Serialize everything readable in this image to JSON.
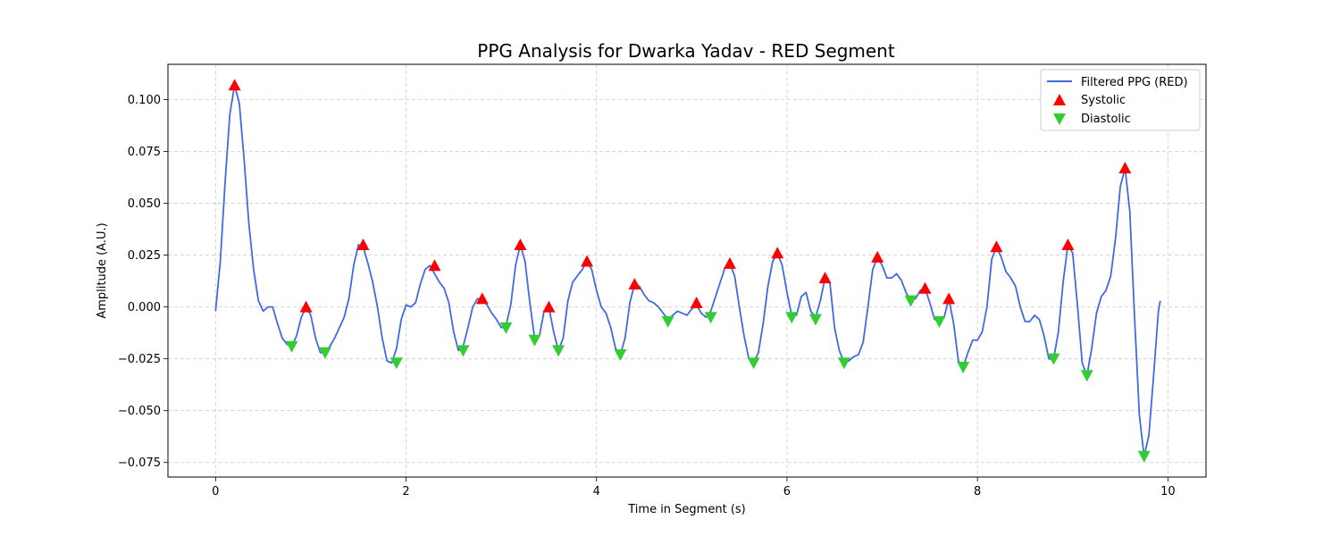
{
  "chart_data": {
    "type": "line",
    "title": "PPG Analysis for Dwarka Yadav - RED Segment",
    "xlabel": "Time in Segment (s)",
    "ylabel": "Amplitude (A.U.)",
    "xlim": [
      -0.5,
      10.4
    ],
    "ylim": [
      -0.082,
      0.117
    ],
    "xticks": [
      0,
      2,
      4,
      6,
      8,
      10
    ],
    "xtick_labels": [
      "0",
      "2",
      "4",
      "6",
      "8",
      "10"
    ],
    "yticks": [
      -0.075,
      -0.05,
      -0.025,
      0.0,
      0.025,
      0.05,
      0.075,
      0.1
    ],
    "ytick_labels": [
      "−0.075",
      "−0.050",
      "−0.025",
      "0.000",
      "0.025",
      "0.050",
      "0.075",
      "0.100"
    ],
    "grid": true,
    "legend_position": "top-right",
    "colors": {
      "line": "#4169e1",
      "systolic": "#ff0000",
      "diastolic": "#32cd32"
    },
    "series": [
      {
        "name": "Filtered PPG (RED)",
        "kind": "line",
        "x": [
          0.0,
          0.05,
          0.1,
          0.15,
          0.2,
          0.25,
          0.3,
          0.35,
          0.4,
          0.45,
          0.5,
          0.55,
          0.6,
          0.65,
          0.7,
          0.75,
          0.8,
          0.85,
          0.9,
          0.95,
          1.0,
          1.05,
          1.1,
          1.15,
          1.2,
          1.25,
          1.3,
          1.35,
          1.4,
          1.45,
          1.5,
          1.55,
          1.6,
          1.65,
          1.7,
          1.75,
          1.8,
          1.85,
          1.9,
          1.95,
          2.0,
          2.05,
          2.1,
          2.15,
          2.2,
          2.25,
          2.3,
          2.35,
          2.4,
          2.45,
          2.5,
          2.55,
          2.6,
          2.65,
          2.7,
          2.75,
          2.8,
          2.85,
          2.9,
          2.95,
          3.0,
          3.05,
          3.1,
          3.15,
          3.2,
          3.25,
          3.3,
          3.35,
          3.4,
          3.45,
          3.5,
          3.55,
          3.6,
          3.65,
          3.7,
          3.75,
          3.8,
          3.85,
          3.9,
          3.95,
          4.0,
          4.05,
          4.1,
          4.15,
          4.2,
          4.25,
          4.3,
          4.35,
          4.4,
          4.45,
          4.5,
          4.55,
          4.6,
          4.65,
          4.7,
          4.75,
          4.8,
          4.85,
          4.9,
          4.95,
          5.0,
          5.05,
          5.1,
          5.15,
          5.2,
          5.25,
          5.3,
          5.35,
          5.4,
          5.45,
          5.5,
          5.55,
          5.6,
          5.65,
          5.7,
          5.75,
          5.8,
          5.85,
          5.9,
          5.95,
          6.0,
          6.05,
          6.1,
          6.15,
          6.2,
          6.25,
          6.3,
          6.35,
          6.4,
          6.45,
          6.5,
          6.55,
          6.6,
          6.65,
          6.7,
          6.75,
          6.8,
          6.85,
          6.9,
          6.95,
          7.0,
          7.05,
          7.1,
          7.15,
          7.2,
          7.25,
          7.3,
          7.35,
          7.4,
          7.45,
          7.5,
          7.55,
          7.6,
          7.65,
          7.7,
          7.75,
          7.8,
          7.85,
          7.9,
          7.95,
          8.0,
          8.05,
          8.1,
          8.15,
          8.2,
          8.25,
          8.3,
          8.35,
          8.4,
          8.45,
          8.5,
          8.55,
          8.6,
          8.65,
          8.7,
          8.75,
          8.8,
          8.85,
          8.9,
          8.95,
          9.0,
          9.05,
          9.1,
          9.15,
          9.2,
          9.25,
          9.3,
          9.35,
          9.4,
          9.45,
          9.5,
          9.55,
          9.6,
          9.65,
          9.7,
          9.75,
          9.8,
          9.85,
          9.9,
          9.92
        ],
        "y": [
          -0.002,
          0.022,
          0.06,
          0.093,
          0.107,
          0.098,
          0.071,
          0.04,
          0.018,
          0.003,
          -0.002,
          0.0,
          0.0,
          -0.008,
          -0.015,
          -0.018,
          -0.019,
          -0.014,
          -0.005,
          0.0,
          -0.004,
          -0.015,
          -0.022,
          -0.022,
          -0.019,
          -0.015,
          -0.01,
          -0.005,
          0.004,
          0.02,
          0.03,
          0.029,
          0.021,
          0.012,
          0.0,
          -0.015,
          -0.026,
          -0.027,
          -0.02,
          -0.006,
          0.001,
          0.0,
          0.002,
          0.011,
          0.018,
          0.02,
          0.016,
          0.012,
          0.009,
          0.002,
          -0.012,
          -0.021,
          -0.019,
          -0.01,
          0.0,
          0.004,
          0.004,
          0.001,
          -0.003,
          -0.006,
          -0.01,
          -0.009,
          0.001,
          0.02,
          0.03,
          0.022,
          0.002,
          -0.015,
          -0.014,
          -0.002,
          0.0,
          -0.012,
          -0.021,
          -0.015,
          0.003,
          0.012,
          0.015,
          0.018,
          0.022,
          0.018,
          0.008,
          0.0,
          -0.003,
          -0.01,
          -0.02,
          -0.023,
          -0.015,
          0.002,
          0.011,
          0.01,
          0.006,
          0.003,
          0.002,
          0.0,
          -0.003,
          -0.006,
          -0.004,
          -0.002,
          -0.003,
          -0.004,
          -0.001,
          0.001,
          -0.003,
          -0.005,
          -0.002,
          0.005,
          0.012,
          0.019,
          0.021,
          0.015,
          0.0,
          -0.014,
          -0.025,
          -0.027,
          -0.022,
          -0.008,
          0.01,
          0.022,
          0.026,
          0.02,
          0.007,
          -0.004,
          -0.004,
          0.005,
          0.007,
          -0.002,
          -0.005,
          0.003,
          0.014,
          0.012,
          -0.01,
          -0.021,
          -0.027,
          -0.026,
          -0.024,
          -0.023,
          -0.017,
          0.0,
          0.018,
          0.024,
          0.02,
          0.014,
          0.014,
          0.016,
          0.013,
          0.007,
          0.003,
          0.004,
          0.008,
          0.009,
          0.002,
          -0.006,
          -0.007,
          -0.005,
          0.004,
          -0.008,
          -0.026,
          -0.029,
          -0.022,
          -0.016,
          -0.016,
          -0.012,
          0.0,
          0.023,
          0.029,
          0.024,
          0.017,
          0.014,
          0.01,
          0.0,
          -0.007,
          -0.007,
          -0.004,
          -0.006,
          -0.014,
          -0.025,
          -0.025,
          -0.012,
          0.012,
          0.03,
          0.026,
          0.001,
          -0.027,
          -0.033,
          -0.02,
          -0.003,
          0.005,
          0.008,
          0.015,
          0.033,
          0.058,
          0.067,
          0.046,
          -0.005,
          -0.052,
          -0.072,
          -0.062,
          -0.033,
          -0.002,
          0.003
        ]
      },
      {
        "name": "Systolic",
        "kind": "marker-up",
        "x": [
          0.2,
          0.95,
          1.55,
          2.3,
          2.8,
          3.2,
          3.5,
          3.9,
          4.4,
          5.05,
          5.4,
          5.9,
          6.4,
          6.95,
          7.45,
          7.7,
          8.2,
          8.95,
          9.55
        ],
        "y": [
          0.107,
          0.0,
          0.03,
          0.02,
          0.004,
          0.03,
          0.0,
          0.022,
          0.011,
          0.002,
          0.021,
          0.026,
          0.014,
          0.024,
          0.009,
          0.004,
          0.029,
          0.03,
          0.067
        ]
      },
      {
        "name": "Diastolic",
        "kind": "marker-down",
        "x": [
          0.8,
          1.15,
          1.9,
          2.6,
          3.05,
          3.35,
          3.6,
          4.25,
          4.75,
          5.2,
          5.65,
          6.05,
          6.3,
          6.6,
          7.3,
          7.6,
          7.85,
          8.8,
          9.15,
          9.75
        ],
        "y": [
          -0.019,
          -0.022,
          -0.027,
          -0.021,
          -0.01,
          -0.016,
          -0.021,
          -0.023,
          -0.007,
          -0.005,
          -0.027,
          -0.005,
          -0.006,
          -0.027,
          0.003,
          -0.007,
          -0.029,
          -0.025,
          -0.033,
          -0.072
        ]
      }
    ]
  }
}
